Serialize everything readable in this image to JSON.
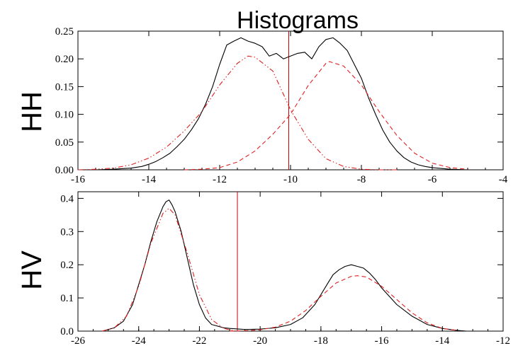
{
  "title": "Histograms",
  "chart_data": [
    {
      "type": "line",
      "panel_label": "HH",
      "xlim": [
        -16,
        -4
      ],
      "ylim": [
        0,
        0.25
      ],
      "xticks": [
        -16,
        -14,
        -12,
        -10,
        -8,
        -6,
        -4
      ],
      "yticks": [
        0.0,
        0.05,
        0.1,
        0.15,
        0.2,
        0.25
      ],
      "ytick_labels": [
        "0.00",
        "0.05",
        "0.10",
        "0.15",
        "0.20",
        "0.25"
      ],
      "threshold_x": -10.05,
      "colors": {
        "histogram": "#000000",
        "fit": "#e02020",
        "threshold": "#cc0000"
      },
      "series": [
        {
          "role": "histogram",
          "x": [
            -15.5,
            -15,
            -14.5,
            -14.2,
            -14,
            -13.8,
            -13.6,
            -13.4,
            -13.2,
            -13,
            -12.8,
            -12.6,
            -12.4,
            -12.2,
            -12,
            -11.8,
            -11.6,
            -11.4,
            -11.2,
            -11,
            -10.8,
            -10.6,
            -10.4,
            -10.2,
            -10,
            -9.8,
            -9.6,
            -9.4,
            -9.2,
            -9,
            -8.8,
            -8.6,
            -8.4,
            -8.2,
            -8,
            -7.8,
            -7.6,
            -7.4,
            -7.2,
            -7,
            -6.8,
            -6.6,
            -6.4,
            -6.2,
            -6,
            -5.5,
            -5
          ],
          "y": [
            0,
            0.001,
            0.003,
            0.006,
            0.01,
            0.015,
            0.022,
            0.03,
            0.042,
            0.055,
            0.072,
            0.092,
            0.118,
            0.15,
            0.19,
            0.225,
            0.232,
            0.238,
            0.232,
            0.228,
            0.222,
            0.205,
            0.21,
            0.2,
            0.205,
            0.21,
            0.212,
            0.2,
            0.222,
            0.235,
            0.238,
            0.228,
            0.215,
            0.19,
            0.165,
            0.13,
            0.1,
            0.072,
            0.05,
            0.034,
            0.022,
            0.014,
            0.009,
            0.006,
            0.004,
            0.001,
            0
          ]
        },
        {
          "role": "fit-left",
          "style": "dash-dot",
          "x": [
            -16,
            -15.5,
            -15,
            -14.5,
            -14,
            -13.5,
            -13,
            -12.5,
            -12,
            -11.5,
            -11.2,
            -11,
            -10.5,
            -10,
            -9.5,
            -9,
            -8.5,
            -8,
            -7.5,
            -7
          ],
          "y": [
            0,
            0.001,
            0.003,
            0.009,
            0.021,
            0.041,
            0.07,
            0.105,
            0.153,
            0.192,
            0.205,
            0.203,
            0.178,
            0.108,
            0.055,
            0.02,
            0.006,
            0.001,
            0,
            0
          ]
        },
        {
          "role": "fit-right",
          "style": "dashed",
          "x": [
            -13,
            -12.5,
            -12,
            -11.5,
            -11,
            -10.5,
            -10,
            -9.5,
            -9,
            -8.9,
            -8.5,
            -8,
            -7.5,
            -7,
            -6.5,
            -6,
            -5.5,
            -5
          ],
          "y": [
            0,
            0.001,
            0.004,
            0.014,
            0.034,
            0.064,
            0.1,
            0.152,
            0.192,
            0.195,
            0.187,
            0.153,
            0.105,
            0.062,
            0.03,
            0.012,
            0.004,
            0.001
          ]
        }
      ]
    },
    {
      "type": "line",
      "panel_label": "HV",
      "xlim": [
        -26,
        -12
      ],
      "ylim": [
        0,
        0.42
      ],
      "xticks": [
        -26,
        -24,
        -22,
        -20,
        -18,
        -16,
        -14,
        -12
      ],
      "yticks": [
        0.0,
        0.1,
        0.2,
        0.3,
        0.4
      ],
      "ytick_labels": [
        "0.0",
        "0.1",
        "0.2",
        "0.3",
        "0.4"
      ],
      "threshold_x": -20.75,
      "colors": {
        "histogram": "#000000",
        "fit": "#e02020",
        "threshold": "#cc0000"
      },
      "series": [
        {
          "role": "histogram",
          "x": [
            -25.2,
            -24.8,
            -24.5,
            -24.2,
            -24,
            -23.8,
            -23.6,
            -23.4,
            -23.2,
            -23.1,
            -23,
            -22.9,
            -22.8,
            -22.6,
            -22.4,
            -22.2,
            -22,
            -21.8,
            -21.6,
            -21.2,
            -21,
            -20.5,
            -20,
            -19.5,
            -19,
            -18.6,
            -18.4,
            -18.2,
            -18,
            -17.8,
            -17.6,
            -17.4,
            -17.2,
            -17,
            -16.8,
            -16.6,
            -16.4,
            -16.2,
            -16,
            -15.8,
            -15.5,
            -15,
            -14.5,
            -14,
            -13.5,
            -13.2
          ],
          "y": [
            0,
            0.01,
            0.03,
            0.08,
            0.14,
            0.2,
            0.27,
            0.33,
            0.375,
            0.39,
            0.395,
            0.38,
            0.36,
            0.3,
            0.22,
            0.14,
            0.08,
            0.04,
            0.02,
            0.01,
            0.008,
            0.005,
            0.006,
            0.01,
            0.02,
            0.04,
            0.06,
            0.08,
            0.11,
            0.14,
            0.17,
            0.185,
            0.195,
            0.2,
            0.195,
            0.19,
            0.175,
            0.155,
            0.13,
            0.11,
            0.08,
            0.045,
            0.02,
            0.008,
            0.002,
            0
          ]
        },
        {
          "role": "fit-left",
          "style": "dash-dot",
          "x": [
            -25.2,
            -24.8,
            -24.4,
            -24,
            -23.6,
            -23.2,
            -23,
            -22.8,
            -22.4,
            -22,
            -21.6,
            -21.2,
            -20.8
          ],
          "y": [
            0,
            0.01,
            0.045,
            0.135,
            0.265,
            0.355,
            0.37,
            0.35,
            0.235,
            0.11,
            0.035,
            0.008,
            0
          ]
        },
        {
          "role": "fit-right",
          "style": "dashed",
          "x": [
            -21,
            -20.5,
            -20,
            -19.5,
            -19,
            -18.5,
            -18,
            -17.5,
            -17,
            -16.8,
            -16.5,
            -16,
            -15.5,
            -15,
            -14.5,
            -14,
            -13.5
          ],
          "y": [
            0,
            0.001,
            0.004,
            0.012,
            0.03,
            0.062,
            0.105,
            0.145,
            0.165,
            0.167,
            0.163,
            0.135,
            0.095,
            0.055,
            0.025,
            0.008,
            0.002
          ]
        }
      ]
    }
  ]
}
